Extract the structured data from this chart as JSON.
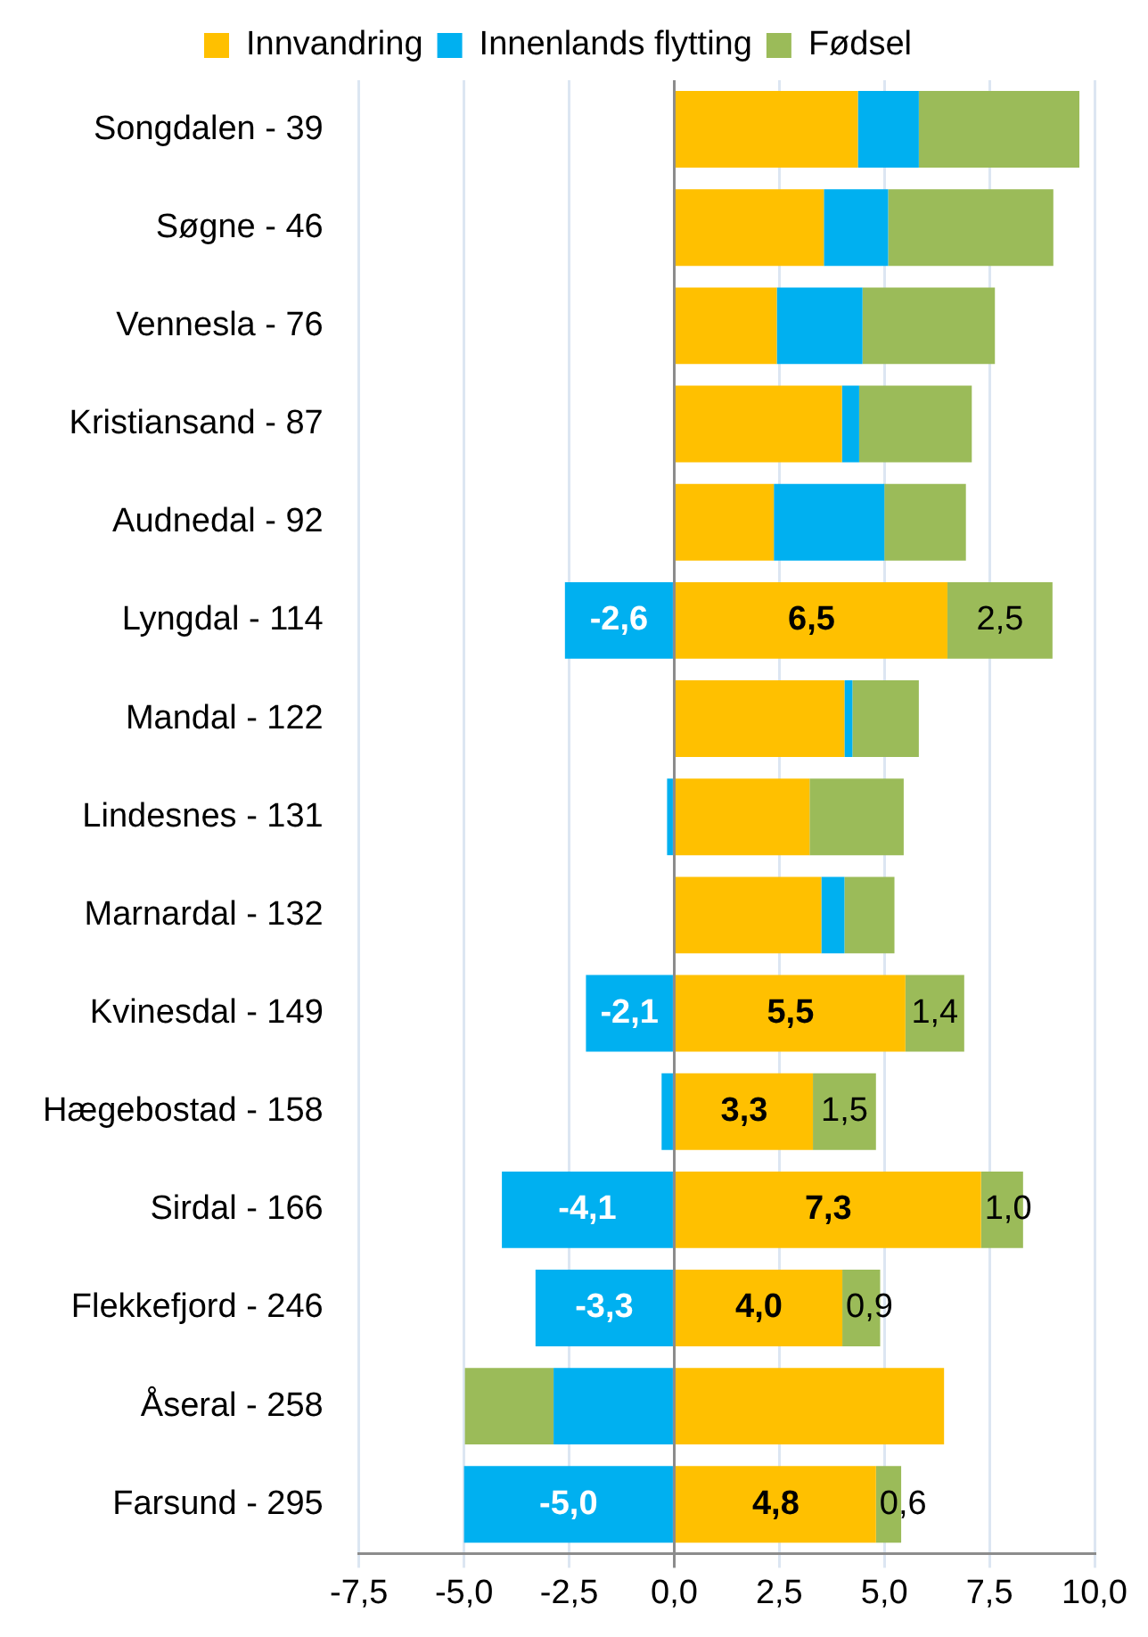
{
  "chart_data": {
    "type": "bar",
    "orientation": "horizontal",
    "stacked": true,
    "legend": "top",
    "grid": "x",
    "categories": [
      "Songdalen - 39",
      "Søgne - 46",
      "Vennesla - 76",
      "Kristiansand - 87",
      "Audnedal - 92",
      "Lyngdal - 114",
      "Mandal - 122",
      "Lindesnes - 131",
      "Marnardal - 132",
      "Kvinesdal - 149",
      "Hægebostad - 158",
      "Sirdal - 166",
      "Flekkefjord - 246",
      "Åseral - 258",
      "Farsund - 295"
    ],
    "series": [
      {
        "name": "Innvandring",
        "color": "#ffc000",
        "values": [
          4.37,
          3.56,
          2.44,
          3.99,
          2.37,
          6.5,
          4.05,
          3.22,
          3.5,
          5.5,
          3.3,
          7.3,
          4.0,
          6.42,
          4.8
        ],
        "value_labels": [
          null,
          null,
          null,
          null,
          null,
          "6,5",
          null,
          null,
          null,
          "5,5",
          "3,3",
          "7,3",
          "4,0",
          null,
          "4,8"
        ]
      },
      {
        "name": "Innenlands flytting",
        "color": "#00b0f0",
        "values": [
          1.45,
          1.53,
          2.04,
          0.41,
          2.63,
          -2.6,
          0.19,
          -0.17,
          0.55,
          -2.1,
          -0.3,
          -4.1,
          -3.3,
          -2.87,
          -5.0
        ],
        "value_labels": [
          null,
          null,
          null,
          null,
          null,
          "-2,6",
          null,
          null,
          null,
          "-2,1",
          null,
          "-4,1",
          "-3,3",
          null,
          "-5,0"
        ]
      },
      {
        "name": "Fødsel",
        "color": "#9bbb59",
        "values": [
          3.82,
          3.93,
          3.15,
          2.68,
          1.94,
          2.5,
          1.58,
          2.24,
          1.19,
          1.4,
          1.5,
          1.0,
          0.9,
          -2.11,
          0.6
        ],
        "value_labels": [
          null,
          null,
          null,
          null,
          null,
          "2,5",
          null,
          null,
          null,
          "1,4",
          "1,5",
          "1,0",
          "0,9",
          null,
          "0,6"
        ]
      }
    ],
    "xlim": [
      -7.5,
      10
    ],
    "xticks": [
      {
        "value": -7.5,
        "label": "-7,5"
      },
      {
        "value": -5,
        "label": "-5,0"
      },
      {
        "value": -2.5,
        "label": "-2,5"
      },
      {
        "value": 0,
        "label": "0,0"
      },
      {
        "value": 2.5,
        "label": "2,5"
      },
      {
        "value": 5,
        "label": "5,0"
      },
      {
        "value": 7.5,
        "label": "7,5"
      },
      {
        "value": 10,
        "label": "10,0"
      }
    ]
  }
}
